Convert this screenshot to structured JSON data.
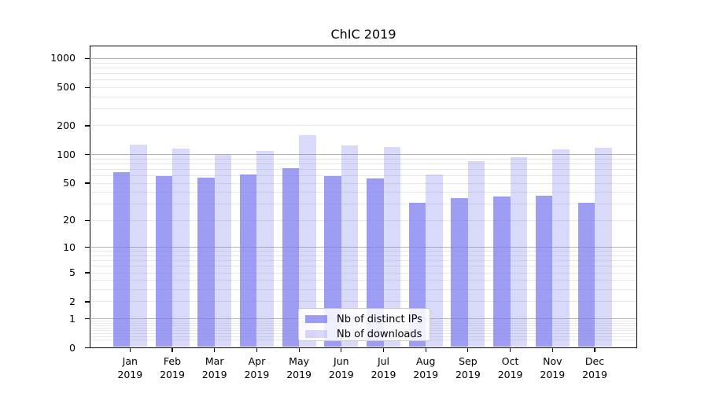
{
  "chart_data": {
    "type": "bar",
    "title": "ChIC 2019",
    "year_label": "2019",
    "categories": [
      "Jan",
      "Feb",
      "Mar",
      "Apr",
      "May",
      "Jun",
      "Jul",
      "Aug",
      "Sep",
      "Oct",
      "Nov",
      "Dec"
    ],
    "series": [
      {
        "name": "Nb of distinct IPs",
        "color": "#7777ee",
        "alpha": 0.72,
        "values": [
          65,
          60,
          57,
          62,
          72,
          60,
          56,
          31,
          35,
          36,
          37,
          31
        ]
      },
      {
        "name": "Nb of downloads",
        "color": "#7777ee",
        "alpha": 0.28,
        "values": [
          127,
          115,
          100,
          110,
          160,
          125,
          120,
          62,
          85,
          94,
          114,
          117
        ]
      }
    ],
    "xlabel": "",
    "ylabel": "",
    "yscale": "log1p",
    "ylim": [
      0,
      1350
    ],
    "yticks": [
      0,
      1,
      2,
      5,
      10,
      20,
      50,
      100,
      200,
      500,
      1000
    ],
    "major_grid_values": [
      1,
      10,
      100,
      1000
    ],
    "grid": true,
    "legend_position": "lower center",
    "colors": {
      "major_grid": "#b3b3b3",
      "minor_grid": "#e8e8e8",
      "axis": "#000000",
      "text": "#000000",
      "background": "#ffffff"
    }
  }
}
